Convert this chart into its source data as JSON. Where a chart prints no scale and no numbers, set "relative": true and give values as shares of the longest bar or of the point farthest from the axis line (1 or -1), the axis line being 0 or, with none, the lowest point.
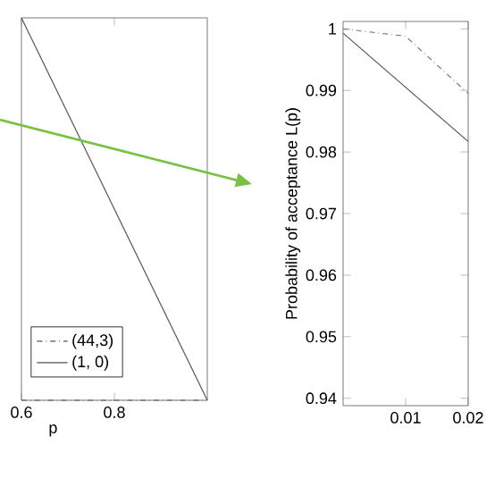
{
  "chart_data": [
    {
      "type": "line",
      "xlabel": "p",
      "relative": true,
      "xlim": [
        0.6,
        1.0
      ],
      "xticks": [
        0.6,
        0.8
      ],
      "legend": "bottom left",
      "tick_labels": "x",
      "series": [
        {
          "name": "(44,3)",
          "color": "#555555",
          "line_style": "dashdot",
          "x": [
            0.6,
            1.0
          ],
          "values": [
            0,
            0
          ]
        },
        {
          "name": "(1, 0)",
          "color": "#555555",
          "line_style": "solid",
          "x": [
            0.6,
            1.0
          ],
          "values": [
            1,
            0
          ]
        }
      ]
    },
    {
      "type": "line",
      "ylabel": "Probability of acceptance     L(p)",
      "xlim": [
        0,
        0.02
      ],
      "xticks": [
        0.01,
        0.02
      ],
      "ylim": [
        0.9388,
        1.0012
      ],
      "yticks": [
        0.94,
        0.95,
        0.96,
        0.97,
        0.98,
        0.99,
        1
      ],
      "series": [
        {
          "color": "#777777",
          "line_style": "dashdot",
          "x": [
            0,
            0.01,
            0.02
          ],
          "values": [
            1.0,
            0.9988,
            0.9895
          ]
        },
        {
          "color": "#555555",
          "line_style": "solid",
          "x": [
            0,
            0.02
          ],
          "values": [
            0.9993,
            0.9817
          ]
        }
      ]
    }
  ]
}
